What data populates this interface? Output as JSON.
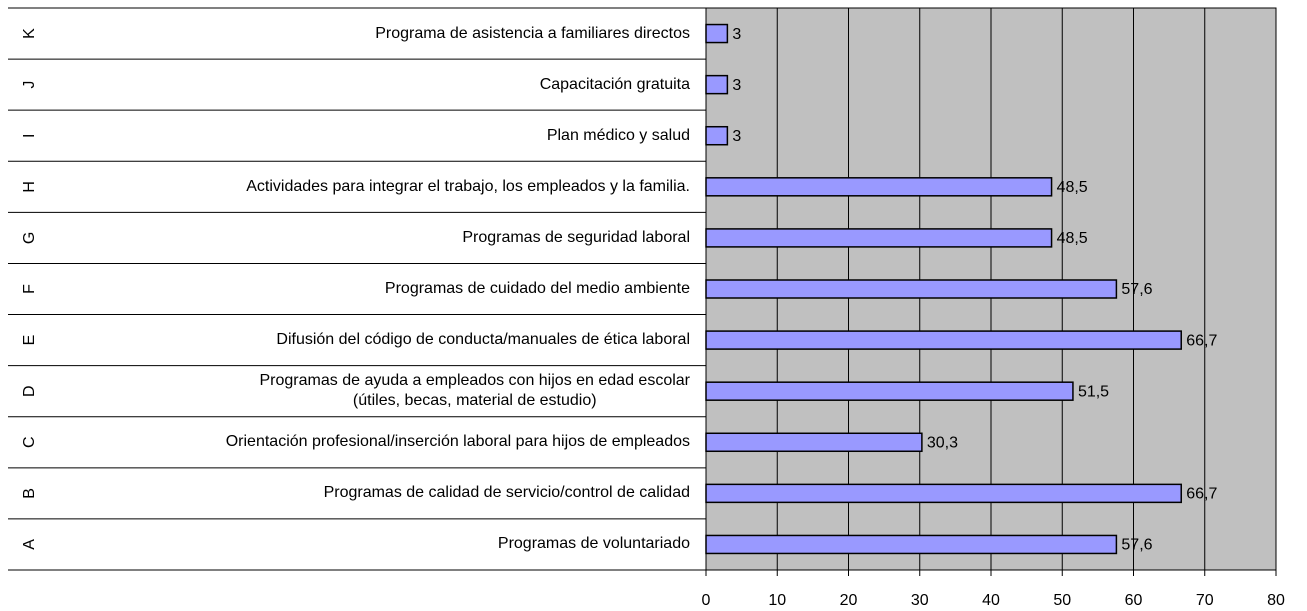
{
  "chart_data": {
    "type": "barh",
    "group_labels": [
      "A",
      "B",
      "C",
      "D",
      "E",
      "F",
      "G",
      "H",
      "I",
      "J",
      "K"
    ],
    "categories": [
      "Programas de voluntariado",
      "Programas de calidad de servicio/control de calidad",
      "Orientación profesional/inserción laboral para hijos de empleados",
      "Programas de ayuda a empleados con hijos en edad escolar\n(útiles, becas, material de estudio)",
      "Difusión del código de conducta/manuales de ética laboral",
      "Programas de cuidado del medio ambiente",
      "Programas de seguridad laboral",
      "Actividades para integrar el trabajo, los empleados y la familia.",
      "Plan médico y salud",
      "Capacitación gratuita",
      "Programa de asistencia a familiares directos"
    ],
    "values": [
      57.6,
      66.7,
      30.3,
      51.5,
      66.7,
      57.6,
      48.5,
      48.5,
      3,
      3,
      3
    ],
    "value_labels": [
      "57,6",
      "66,7",
      "30,3",
      "51,5",
      "66,7",
      "57,6",
      "48,5",
      "48,5",
      "3",
      "3",
      "3"
    ],
    "color": "#9999ff",
    "plot_background": "#c0c0c0",
    "xlim": [
      0,
      80
    ],
    "xticks": [
      0,
      10,
      20,
      30,
      40,
      50,
      60,
      70,
      80
    ],
    "grid": true
  }
}
